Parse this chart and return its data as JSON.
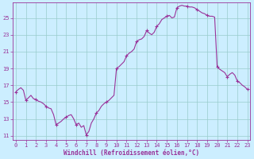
{
  "xlabel": "Windchill (Refroidissement éolien,°C)",
  "background_color": "#cceeff",
  "grid_color": "#99cccc",
  "line_color": "#993399",
  "marker_color": "#993399",
  "ylim": [
    10.5,
    26.8
  ],
  "xlim": [
    -0.3,
    23.3
  ],
  "yticks": [
    11,
    13,
    15,
    17,
    19,
    21,
    23,
    25
  ],
  "xticks": [
    0,
    1,
    2,
    3,
    4,
    5,
    6,
    7,
    8,
    9,
    10,
    11,
    12,
    13,
    14,
    15,
    16,
    17,
    18,
    19,
    20,
    21,
    22,
    23
  ],
  "data_x": [
    0,
    0.25,
    0.5,
    0.75,
    1,
    1.25,
    1.5,
    1.75,
    2,
    2.25,
    2.5,
    2.75,
    3,
    3.25,
    3.5,
    3.75,
    4,
    4.25,
    4.5,
    4.75,
    5,
    5.25,
    5.5,
    5.75,
    6,
    6.25,
    6.5,
    6.75,
    7,
    7.25,
    7.5,
    7.75,
    8,
    8.25,
    8.5,
    8.75,
    9,
    9.25,
    9.5,
    9.75,
    10,
    10.25,
    10.5,
    10.75,
    11,
    11.25,
    11.5,
    11.75,
    12,
    12.25,
    12.5,
    12.75,
    13,
    13.25,
    13.5,
    13.75,
    14,
    14.25,
    14.5,
    14.75,
    15,
    15.25,
    15.5,
    15.75,
    16,
    16.25,
    16.5,
    16.75,
    17,
    17.25,
    17.5,
    17.75,
    18,
    18.25,
    18.5,
    18.75,
    19,
    19.25,
    19.5,
    19.75,
    20,
    20.25,
    20.5,
    20.75,
    21,
    21.25,
    21.5,
    21.75,
    22,
    22.25,
    22.5,
    22.75,
    23
  ],
  "data_y": [
    16.2,
    16.5,
    16.7,
    16.4,
    15.2,
    15.5,
    15.8,
    15.4,
    15.3,
    15.1,
    15.0,
    14.8,
    14.5,
    14.3,
    14.2,
    13.5,
    12.3,
    12.5,
    12.7,
    13.0,
    13.2,
    13.4,
    13.5,
    13.0,
    12.3,
    12.5,
    12.0,
    12.2,
    11.1,
    11.5,
    12.5,
    13.0,
    13.7,
    14.0,
    14.5,
    14.8,
    15.0,
    15.2,
    15.5,
    15.8,
    19.0,
    19.2,
    19.5,
    19.8,
    20.5,
    20.8,
    21.0,
    21.3,
    22.2,
    22.4,
    22.5,
    22.8,
    23.5,
    23.2,
    23.0,
    23.3,
    24.0,
    24.3,
    24.8,
    25.0,
    25.2,
    25.3,
    25.0,
    25.1,
    26.2,
    26.4,
    26.5,
    26.4,
    26.4,
    26.3,
    26.3,
    26.2,
    26.0,
    25.8,
    25.6,
    25.5,
    25.3,
    25.2,
    25.2,
    25.1,
    19.2,
    18.9,
    18.7,
    18.5,
    18.0,
    18.3,
    18.5,
    18.2,
    17.5,
    17.3,
    17.0,
    16.8,
    16.5
  ],
  "marker_x": [
    0,
    1,
    2,
    3,
    4,
    5,
    6,
    7,
    8,
    9,
    10,
    11,
    12,
    13,
    14,
    15,
    16,
    17,
    18,
    19,
    20,
    21,
    22,
    23
  ],
  "marker_y": [
    16.2,
    15.2,
    15.3,
    14.5,
    12.3,
    13.2,
    12.3,
    11.1,
    13.7,
    15.0,
    19.0,
    20.5,
    22.2,
    23.5,
    24.0,
    25.2,
    26.2,
    26.4,
    26.0,
    25.3,
    19.2,
    18.0,
    17.5,
    16.5
  ]
}
